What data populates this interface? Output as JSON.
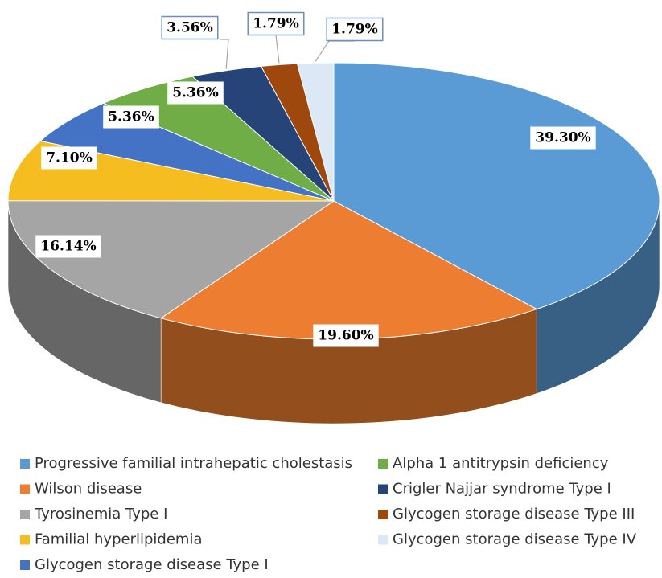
{
  "chart_data": {
    "type": "pie3d",
    "categories": [
      "Progressive familial intrahepatic cholestasis",
      "Wilson disease",
      "Tyrosinemia Type I",
      "Familial hyperlipidemia",
      "Glycogen storage disease Type I",
      "Alpha 1 antitrypsin deficiency",
      "Crigler Najjar syndrome Type I",
      "Glycogen storage disease Type III",
      "Glycogen storage disease Type IV"
    ],
    "values": [
      39.3,
      19.6,
      16.14,
      7.1,
      5.36,
      5.36,
      3.56,
      1.79,
      1.79
    ],
    "value_labels": [
      "39.30%",
      "19.60%",
      "16.14%",
      "7.10%",
      "5.36%",
      "5.36%",
      "3.56%",
      "1.79%",
      "1.79%"
    ],
    "colors": [
      "#5b9bd5",
      "#ed7d31",
      "#a5a5a5",
      "#f5bd1f",
      "#4472c4",
      "#70ad47",
      "#264478",
      "#9e480e",
      "#dce8f5"
    ]
  }
}
